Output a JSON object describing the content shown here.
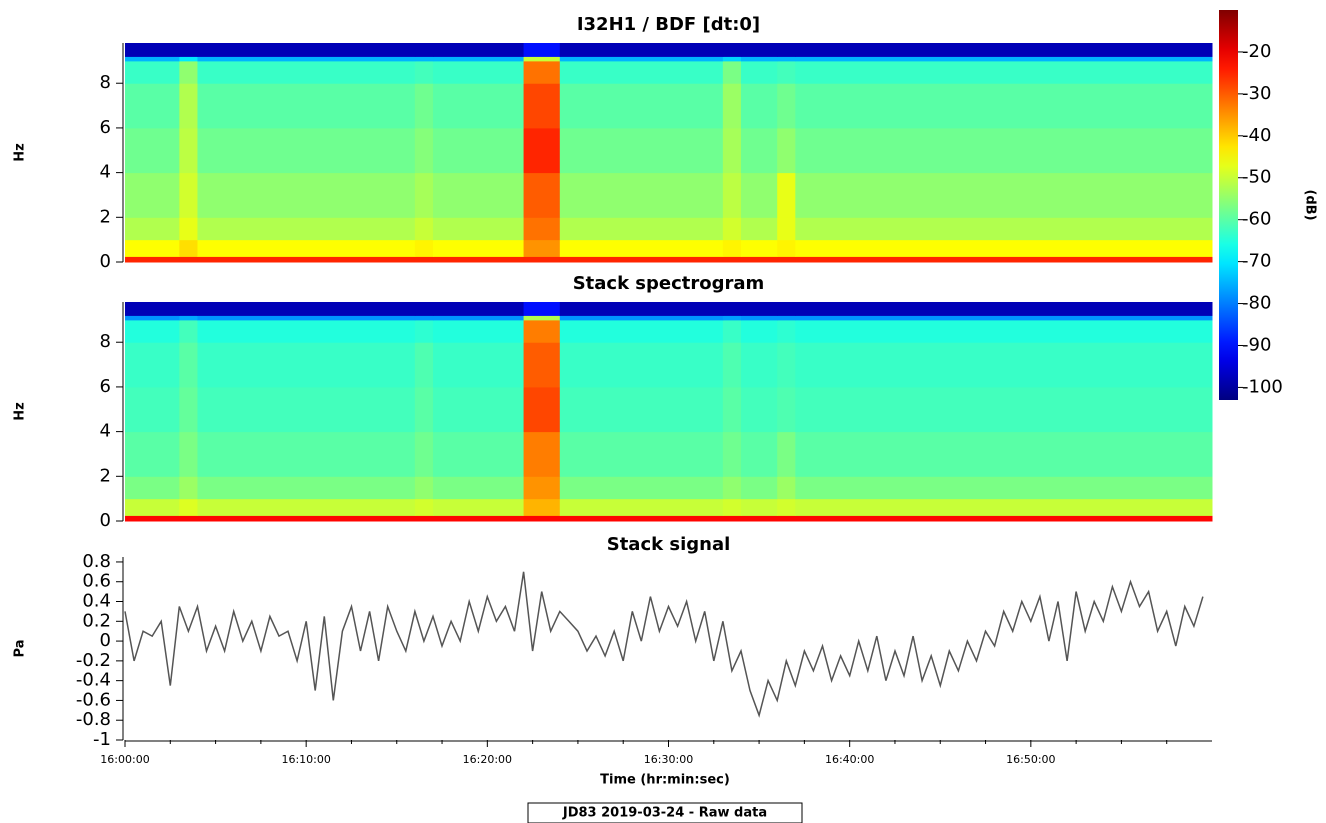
{
  "chart_data": [
    {
      "type": "heatmap",
      "title": "I32H1 / BDF [dt:0]",
      "ylabel": "Hz",
      "x_edges": [
        0,
        3,
        4,
        16,
        17,
        22,
        24,
        33,
        34,
        36,
        37,
        60
      ],
      "y_edges": [
        0,
        0.25,
        1,
        2,
        4,
        6,
        8,
        9,
        9.2,
        9.8
      ],
      "z": [
        [
          -25,
          -25,
          -25,
          -25,
          -25,
          -25,
          -25,
          -25,
          -25,
          -25,
          -25
        ],
        [
          -45,
          -42,
          -45,
          -44,
          -45,
          -35,
          -45,
          -44,
          -45,
          -44,
          -45
        ],
        [
          -52,
          -47,
          -52,
          -50,
          -52,
          -32,
          -52,
          -49,
          -52,
          -47,
          -52
        ],
        [
          -55,
          -49,
          -55,
          -53,
          -55,
          -30,
          -55,
          -51,
          -55,
          -47,
          -55
        ],
        [
          -58,
          -51,
          -58,
          -56,
          -58,
          -25,
          -58,
          -53,
          -58,
          -55,
          -58
        ],
        [
          -60,
          -52,
          -60,
          -58,
          -60,
          -28,
          -60,
          -54,
          -60,
          -58,
          -60
        ],
        [
          -63,
          -55,
          -63,
          -62,
          -63,
          -32,
          -63,
          -57,
          -63,
          -62,
          -63
        ],
        [
          -75,
          -70,
          -75,
          -75,
          -75,
          -50,
          -75,
          -72,
          -75,
          -75,
          -75
        ],
        [
          -98,
          -98,
          -98,
          -98,
          -98,
          -90,
          -98,
          -98,
          -98,
          -98,
          -98
        ]
      ],
      "ylim": [
        0,
        9.8
      ],
      "yticks": [
        0,
        2,
        4,
        6,
        8
      ],
      "xlim": [
        0,
        60
      ]
    },
    {
      "type": "heatmap",
      "title": "Stack spectrogram",
      "ylabel": "Hz",
      "x_edges": [
        0,
        3,
        4,
        16,
        17,
        22,
        24,
        33,
        34,
        36,
        37,
        60
      ],
      "y_edges": [
        0,
        0.25,
        1,
        2,
        4,
        6,
        8,
        9,
        9.2,
        9.8
      ],
      "z": [
        [
          -22,
          -22,
          -22,
          -22,
          -22,
          -22,
          -22,
          -22,
          -22,
          -22,
          -22
        ],
        [
          -50,
          -48,
          -50,
          -49,
          -50,
          -38,
          -50,
          -49,
          -50,
          -49,
          -50
        ],
        [
          -57,
          -54,
          -57,
          -55,
          -57,
          -35,
          -57,
          -55,
          -57,
          -54,
          -57
        ],
        [
          -60,
          -57,
          -60,
          -58,
          -60,
          -33,
          -60,
          -58,
          -60,
          -57,
          -60
        ],
        [
          -62,
          -59,
          -62,
          -60,
          -62,
          -28,
          -62,
          -60,
          -62,
          -61,
          -62
        ],
        [
          -63,
          -60,
          -63,
          -61,
          -63,
          -30,
          -63,
          -61,
          -63,
          -62,
          -63
        ],
        [
          -65,
          -62,
          -65,
          -64,
          -65,
          -33,
          -65,
          -63,
          -65,
          -64,
          -65
        ],
        [
          -78,
          -76,
          -78,
          -78,
          -78,
          -52,
          -78,
          -77,
          -78,
          -78,
          -78
        ],
        [
          -98,
          -98,
          -98,
          -98,
          -98,
          -90,
          -98,
          -98,
          -98,
          -98,
          -98
        ]
      ],
      "ylim": [
        0,
        9.8
      ],
      "yticks": [
        0,
        2,
        4,
        6,
        8
      ],
      "xlim": [
        0,
        60
      ]
    },
    {
      "type": "line",
      "title": "Stack signal",
      "ylabel": "Pa",
      "xlabel": "Time (hr:min:sec)",
      "color": "#555555",
      "x": [
        0,
        0.5,
        1,
        1.5,
        2,
        2.5,
        3,
        3.5,
        4,
        4.5,
        5,
        5.5,
        6,
        6.5,
        7,
        7.5,
        8,
        8.5,
        9,
        9.5,
        10,
        10.5,
        11,
        11.5,
        12,
        12.5,
        13,
        13.5,
        14,
        14.5,
        15,
        15.5,
        16,
        16.5,
        17,
        17.5,
        18,
        18.5,
        19,
        19.5,
        20,
        20.5,
        21,
        21.5,
        22,
        22.5,
        23,
        23.5,
        24,
        24.5,
        25,
        25.5,
        26,
        26.5,
        27,
        27.5,
        28,
        28.5,
        29,
        29.5,
        30,
        30.5,
        31,
        31.5,
        32,
        32.5,
        33,
        33.5,
        34,
        34.5,
        35,
        35.5,
        36,
        36.5,
        37,
        37.5,
        38,
        38.5,
        39,
        39.5,
        40,
        40.5,
        41,
        41.5,
        42,
        42.5,
        43,
        43.5,
        44,
        44.5,
        45,
        45.5,
        46,
        46.5,
        47,
        47.5,
        48,
        48.5,
        49,
        49.5,
        50,
        50.5,
        51,
        51.5,
        52,
        52.5,
        53,
        53.5,
        54,
        54.5,
        55,
        55.5,
        56,
        56.5,
        57,
        57.5,
        58,
        58.5,
        59,
        59.5
      ],
      "values": [
        0.3,
        -0.2,
        0.1,
        0.05,
        0.2,
        -0.45,
        0.35,
        0.1,
        0.35,
        -0.1,
        0.15,
        -0.1,
        0.3,
        0,
        0.2,
        -0.1,
        0.25,
        0.05,
        0.1,
        -0.2,
        0.2,
        -0.5,
        0.25,
        -0.6,
        0.1,
        0.35,
        -0.1,
        0.3,
        -0.2,
        0.35,
        0.1,
        -0.1,
        0.3,
        0,
        0.25,
        -0.05,
        0.2,
        0,
        0.4,
        0.1,
        0.45,
        0.2,
        0.35,
        0.1,
        0.7,
        -0.1,
        0.5,
        0.1,
        0.3,
        0.2,
        0.1,
        -0.1,
        0.05,
        -0.15,
        0.1,
        -0.2,
        0.3,
        0,
        0.45,
        0.1,
        0.35,
        0.15,
        0.4,
        0,
        0.3,
        -0.2,
        0.2,
        -0.3,
        -0.1,
        -0.5,
        -0.75,
        -0.4,
        -0.6,
        -0.2,
        -0.45,
        -0.1,
        -0.3,
        -0.05,
        -0.4,
        -0.15,
        -0.35,
        0,
        -0.3,
        0.05,
        -0.4,
        -0.1,
        -0.35,
        0.05,
        -0.4,
        -0.15,
        -0.45,
        -0.1,
        -0.3,
        0,
        -0.2,
        0.1,
        -0.05,
        0.3,
        0.1,
        0.4,
        0.2,
        0.45,
        0,
        0.4,
        -0.2,
        0.5,
        0.1,
        0.4,
        0.2,
        0.55,
        0.3,
        0.6,
        0.35,
        0.5,
        0.1,
        0.3,
        -0.05,
        0.35,
        0.15,
        0.45
      ],
      "xlim": [
        0,
        60
      ],
      "ylim": [
        -1,
        0.85
      ],
      "yticks": [
        -1,
        -0.8,
        -0.6,
        -0.4,
        -0.2,
        0,
        0.2,
        0.4,
        0.6,
        0.8
      ],
      "xticks": [
        {
          "value": 0,
          "label": "16:00:00"
        },
        {
          "value": 10,
          "label": "16:10:00"
        },
        {
          "value": 20,
          "label": "16:20:00"
        },
        {
          "value": 30,
          "label": "16:30:00"
        },
        {
          "value": 40,
          "label": "16:40:00"
        },
        {
          "value": 50,
          "label": "16:50:00"
        }
      ],
      "xminorticks": [
        2.5,
        5,
        7.5,
        12.5,
        15,
        17.5,
        22.5,
        25,
        27.5,
        32.5,
        35,
        37.5,
        42.5,
        45,
        47.5,
        52.5,
        55,
        57.5
      ]
    }
  ],
  "colorbar": {
    "label": "(dB)",
    "colormap": "jet",
    "lim": [
      -103,
      -10
    ],
    "ticks": [
      -100,
      -90,
      -80,
      -70,
      -60,
      -50,
      -40,
      -30,
      -20
    ]
  },
  "footer": "JD83 2019-03-24 - Raw data"
}
